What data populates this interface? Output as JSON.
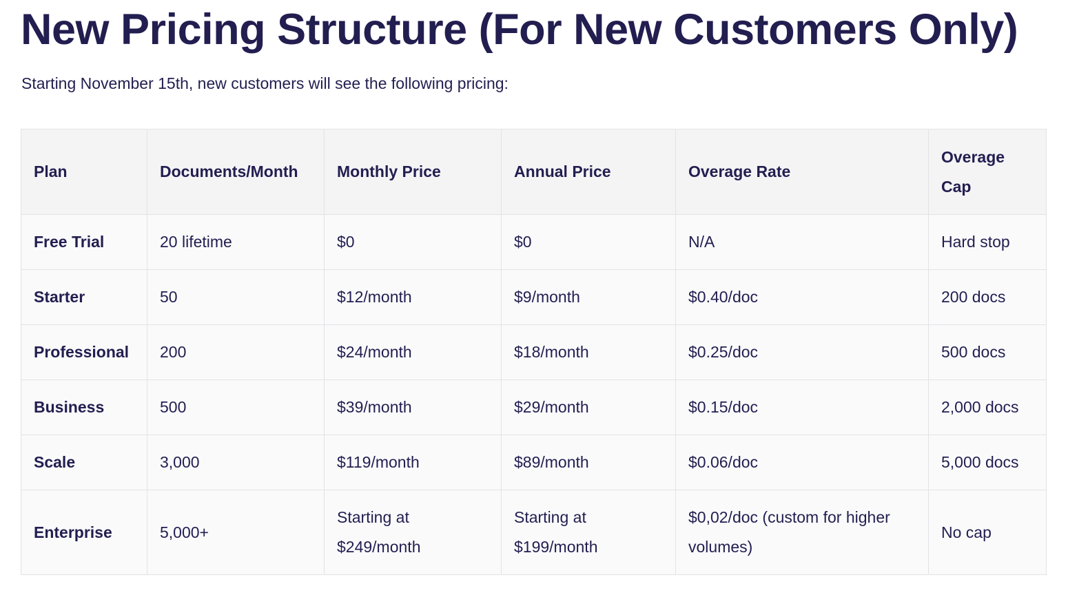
{
  "page": {
    "title": "New Pricing Structure (For New Customers Only)",
    "intro": "Starting November 15th, new customers will see the following pricing:"
  },
  "table": {
    "headers": [
      "Plan",
      "Documents/Month",
      "Monthly Price",
      "Annual Price",
      "Overage Rate",
      "Overage Cap"
    ],
    "rows": [
      [
        "Free Trial",
        "20 lifetime",
        "$0",
        "$0",
        "N/A",
        "Hard stop"
      ],
      [
        "Starter",
        "50",
        "$12/month",
        "$9/month",
        "$0.40/doc",
        "200 docs"
      ],
      [
        "Professional",
        "200",
        "$24/month",
        "$18/month",
        "$0.25/doc",
        "500 docs"
      ],
      [
        "Business",
        "500",
        "$39/month",
        "$29/month",
        "$0.15/doc",
        "2,000 docs"
      ],
      [
        "Scale",
        "3,000",
        "$119/month",
        "$89/month",
        "$0.06/doc",
        "5,000 docs"
      ],
      [
        "Enterprise",
        "5,000+",
        "Starting at $249/month",
        "Starting at $199/month",
        "$0,02/doc (custom for higher volumes)",
        "No cap"
      ]
    ]
  }
}
